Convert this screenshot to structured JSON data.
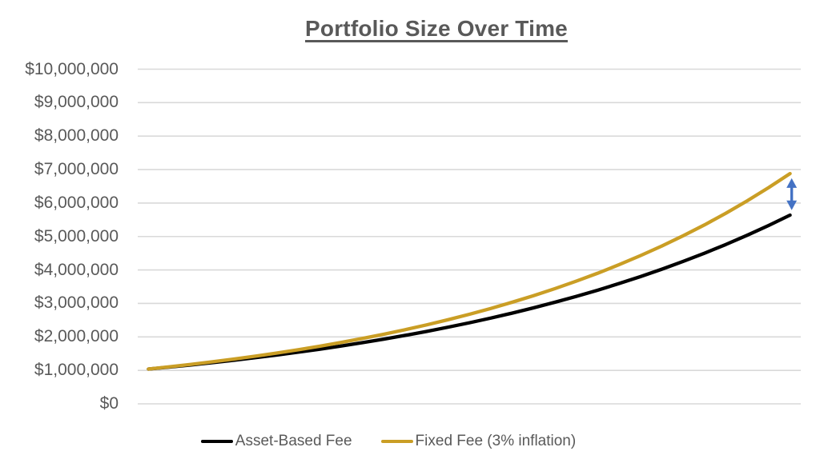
{
  "title": "Portfolio Size Over Time",
  "colors": {
    "background": "#FFFFFF",
    "gridline": "#D9D9D9",
    "axis_text": "#595959",
    "title_text": "#595959",
    "arrow_blue": "#4472C4"
  },
  "chart_data": {
    "type": "line",
    "title": "Portfolio Size Over Time",
    "xlabel": "",
    "ylabel": "",
    "x_axis_labels_visible": false,
    "x": [
      0,
      1,
      2,
      3,
      4,
      5,
      6,
      7,
      8,
      9,
      10,
      11,
      12,
      13,
      14,
      15,
      16,
      17,
      18,
      19,
      20,
      21,
      22,
      23,
      24,
      25,
      26,
      27,
      28,
      29,
      30
    ],
    "series": [
      {
        "name": "Asset-Based Fee",
        "color": "#000000",
        "values": [
          1040000,
          1100000,
          1164000,
          1231000,
          1303000,
          1378000,
          1458000,
          1543000,
          1632000,
          1727000,
          1827000,
          1933000,
          2045000,
          2163000,
          2289000,
          2421000,
          2562000,
          2710000,
          2868000,
          3034000,
          3210000,
          3396000,
          3593000,
          3801000,
          4022000,
          4255000,
          4502000,
          4763000,
          5039000,
          5331000,
          5640000
        ]
      },
      {
        "name": "Fixed Fee (3% inflation)",
        "color": "#CA9E25",
        "values": [
          1040000,
          1108000,
          1180000,
          1256000,
          1338000,
          1425000,
          1518000,
          1616000,
          1721000,
          1833000,
          1952000,
          2079000,
          2214000,
          2358000,
          2512000,
          2675000,
          2849000,
          3034000,
          3231000,
          3441000,
          3665000,
          3903000,
          4157000,
          4427000,
          4715000,
          5022000,
          5348000,
          5696000,
          6066000,
          6460000,
          6880000
        ]
      }
    ],
    "ylim": [
      0,
      10000000
    ],
    "y_ticks": [
      {
        "label": "$0",
        "value": 0
      },
      {
        "label": "$1,000,000",
        "value": 1000000
      },
      {
        "label": "$2,000,000",
        "value": 2000000
      },
      {
        "label": "$3,000,000",
        "value": 3000000
      },
      {
        "label": "$4,000,000",
        "value": 4000000
      },
      {
        "label": "$5,000,000",
        "value": 5000000
      },
      {
        "label": "$6,000,000",
        "value": 6000000
      },
      {
        "label": "$7,000,000",
        "value": 7000000
      },
      {
        "label": "$8,000,000",
        "value": 8000000
      },
      {
        "label": "$9,000,000",
        "value": 9000000
      },
      {
        "label": "$10,000,000",
        "value": 10000000
      }
    ],
    "grid": "horizontal",
    "legend_position": "bottom",
    "annotation": {
      "type": "double-headed-arrow",
      "color": "#4472C4",
      "x_index": 30,
      "top_value": 6740000,
      "bottom_value": 5790000
    }
  }
}
